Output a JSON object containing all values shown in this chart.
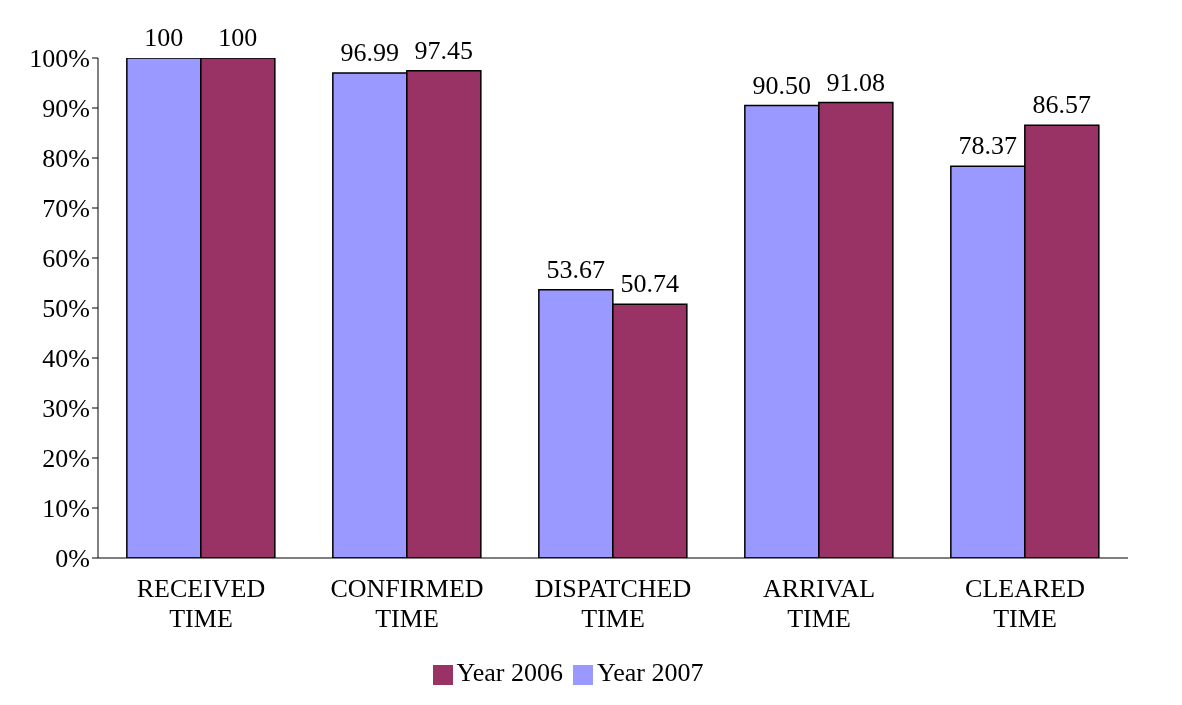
{
  "chart_data": {
    "type": "bar",
    "categories": [
      "RECEIVED TIME",
      "CONFIRMED TIME",
      "DISPATCHED TIME",
      "ARRIVAL TIME",
      "CLEARED TIME"
    ],
    "series": [
      {
        "name": "Year 2007",
        "color": "#9999ff",
        "values": [
          100,
          96.99,
          53.67,
          90.5,
          78.37
        ],
        "value_labels": [
          "100",
          "96.99",
          "53.67",
          "90.50",
          "78.37"
        ]
      },
      {
        "name": "Year 2006",
        "color": "#993366",
        "values": [
          100,
          97.45,
          50.74,
          91.08,
          86.57
        ],
        "value_labels": [
          "100",
          "97.45",
          "50.74",
          "91.08",
          "86.57"
        ]
      }
    ],
    "ylim": [
      0,
      100
    ],
    "yticks": [
      {
        "value": 0,
        "label": "0%"
      },
      {
        "value": 10,
        "label": "10%"
      },
      {
        "value": 20,
        "label": "20%"
      },
      {
        "value": 30,
        "label": "30%"
      },
      {
        "value": 40,
        "label": "40%"
      },
      {
        "value": 50,
        "label": "50%"
      },
      {
        "value": 60,
        "label": "60%"
      },
      {
        "value": 70,
        "label": "70%"
      },
      {
        "value": 80,
        "label": "80%"
      },
      {
        "value": 90,
        "label": "90%"
      },
      {
        "value": 100,
        "label": "100%"
      }
    ],
    "legend": "bottom"
  }
}
